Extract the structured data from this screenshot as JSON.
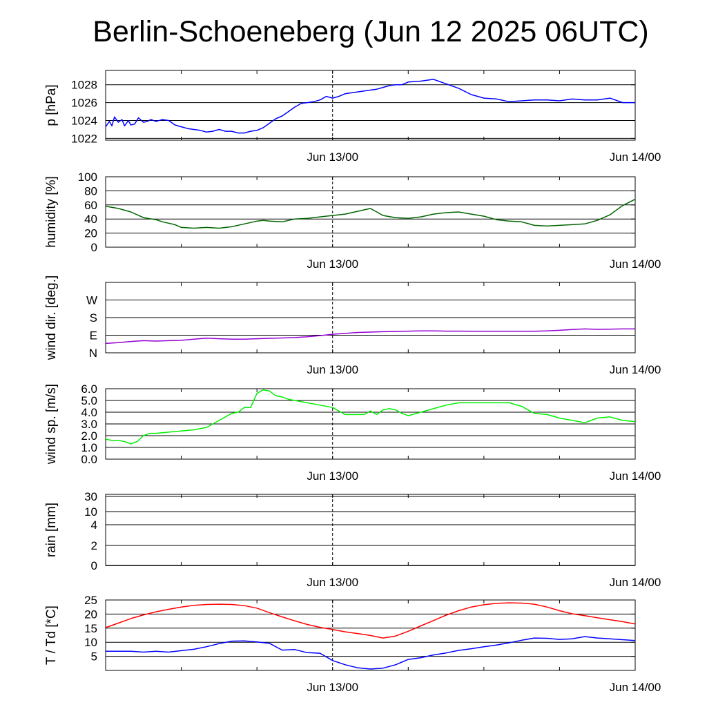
{
  "title": "Berlin-Schoeneberg (Jun 12 2025 06UTC)",
  "colors": {
    "pressure": "#0000ff",
    "humidity": "#006400",
    "wind_dir": "#9400d3",
    "wind_speed": "#00ee00",
    "rain": "#000000",
    "temperature": "#ff0000",
    "dewpoint": "#0000ff"
  },
  "chart_data": [
    {
      "type": "line",
      "ylabel": "p [hPa]",
      "x_tick_labels": [
        "Jun 13/00",
        "Jun 14/00"
      ],
      "x_range_hours": [
        0,
        42
      ],
      "y_ticks": [
        1022,
        1024,
        1026,
        1028
      ],
      "y_tick_labels": [
        "1022",
        "1024",
        "1026",
        "1028"
      ],
      "ylim": [
        1021.8,
        1029.6
      ],
      "grid": true,
      "series": [
        {
          "x": [
            0,
            0.3,
            0.5,
            0.7,
            1,
            1.3,
            1.5,
            1.8,
            2,
            2.3,
            2.6,
            3,
            3.3,
            3.6,
            4,
            4.5,
            5,
            5.5,
            6,
            6.5,
            7,
            7.5,
            8,
            8.5,
            9,
            9.5,
            10,
            10.5,
            11,
            11.5,
            12,
            12.5,
            13,
            13.5,
            14,
            14.5,
            15,
            15.5,
            16,
            16.5,
            17,
            17.5,
            18,
            18.5,
            19,
            19.5,
            20,
            20.5,
            21,
            21.5,
            22,
            22.5,
            23,
            23.5,
            24,
            25,
            26,
            27,
            28,
            29,
            30,
            31,
            32,
            33,
            34,
            35,
            36,
            37,
            38,
            39,
            40,
            41,
            42
          ],
          "y": [
            1023.3,
            1023.9,
            1023.4,
            1024.4,
            1023.8,
            1024.1,
            1023.4,
            1024.0,
            1023.5,
            1023.6,
            1024.3,
            1023.8,
            1023.9,
            1024.1,
            1023.9,
            1024.1,
            1024.0,
            1023.5,
            1023.3,
            1023.1,
            1023.0,
            1022.9,
            1022.7,
            1022.8,
            1023.0,
            1022.8,
            1022.8,
            1022.6,
            1022.6,
            1022.8,
            1022.9,
            1023.2,
            1023.7,
            1024.2,
            1024.5,
            1025.0,
            1025.5,
            1025.9,
            1026.0,
            1026.1,
            1026.3,
            1026.7,
            1026.5,
            1026.7,
            1027.0,
            1027.1,
            1027.2,
            1027.3,
            1027.4,
            1027.5,
            1027.7,
            1027.9,
            1028.0,
            1028.0,
            1028.3,
            1028.4,
            1028.6,
            1028.1,
            1027.6,
            1026.9,
            1026.5,
            1026.4,
            1026.1,
            1026.2,
            1026.3,
            1026.3,
            1026.2,
            1026.4,
            1026.3,
            1026.3,
            1026.5,
            1026.0,
            1026.0
          ]
        }
      ]
    },
    {
      "type": "line",
      "ylabel": "humidity [%]",
      "x_tick_labels": [
        "Jun 13/00",
        "Jun 14/00"
      ],
      "x_range_hours": [
        0,
        42
      ],
      "y_ticks": [
        0,
        20,
        40,
        60,
        80,
        100
      ],
      "y_tick_labels": [
        "0",
        "20",
        "40",
        "60",
        "80",
        "100"
      ],
      "ylim": [
        0,
        100
      ],
      "grid": true,
      "series": [
        {
          "x": [
            0,
            1,
            2,
            2.5,
            3,
            4,
            4.5,
            5,
            5.5,
            6,
            7,
            8,
            9,
            10,
            11,
            12,
            12.5,
            13,
            14,
            15,
            16,
            17,
            18,
            19,
            20,
            21,
            22,
            23,
            24,
            25,
            26,
            27,
            28,
            29,
            30,
            31,
            32,
            33,
            34,
            35,
            36,
            37,
            38,
            39,
            40,
            41,
            42
          ],
          "y": [
            58,
            55,
            50,
            46,
            42,
            39,
            36,
            34,
            32,
            28,
            27,
            28,
            27,
            29,
            33,
            37,
            38,
            37,
            36,
            40,
            41,
            43,
            45,
            47,
            51,
            55,
            45,
            42,
            41,
            43,
            47,
            49,
            50,
            47,
            44,
            39,
            37,
            36,
            31,
            30,
            31,
            32,
            33,
            38,
            46,
            59,
            68
          ]
        }
      ]
    },
    {
      "type": "line",
      "ylabel": "wind dir. [deg.]",
      "x_tick_labels": [
        "Jun 13/00",
        "Jun 14/00"
      ],
      "x_range_hours": [
        0,
        42
      ],
      "y_ticks": [
        0,
        90,
        180,
        270
      ],
      "y_tick_labels": [
        "N",
        "E",
        "S",
        "W"
      ],
      "ylim": [
        0,
        360
      ],
      "grid": true,
      "series": [
        {
          "x": [
            0,
            1,
            2,
            3,
            4,
            5,
            6,
            7,
            8,
            9,
            10,
            11,
            12,
            13,
            14,
            15,
            16,
            17,
            18,
            19,
            20,
            21,
            22,
            23,
            24,
            25,
            26,
            27,
            28,
            29,
            30,
            31,
            32,
            33,
            34,
            35,
            36,
            37,
            38,
            39,
            40,
            41,
            42
          ],
          "y": [
            48,
            52,
            58,
            62,
            60,
            62,
            64,
            70,
            75,
            72,
            70,
            70,
            72,
            74,
            76,
            78,
            82,
            88,
            95,
            99,
            104,
            106,
            108,
            109,
            111,
            112,
            112,
            111,
            111,
            110,
            110,
            110,
            110,
            110,
            110,
            112,
            115,
            119,
            122,
            120,
            121,
            122,
            122
          ]
        }
      ]
    },
    {
      "type": "line",
      "ylabel": "wind sp. [m/s]",
      "x_tick_labels": [
        "Jun 13/00",
        "Jun 14/00"
      ],
      "x_range_hours": [
        0,
        42
      ],
      "y_ticks": [
        0,
        1,
        2,
        3,
        4,
        5,
        6
      ],
      "y_tick_labels": [
        "0.0",
        "1.0",
        "2.0",
        "3.0",
        "4.0",
        "5.0",
        "6.0"
      ],
      "ylim": [
        0,
        6
      ],
      "grid": true,
      "series": [
        {
          "x": [
            0,
            0.5,
            1,
            1.5,
            2,
            2.5,
            3,
            3.5,
            4,
            5,
            6,
            7,
            8,
            9,
            10,
            10.5,
            11,
            11.5,
            12,
            12.5,
            13,
            13.5,
            14,
            14.5,
            15,
            16,
            17,
            18,
            19,
            20,
            20.5,
            21,
            21.5,
            22,
            22.5,
            23,
            23.5,
            24,
            25,
            26,
            27,
            28,
            29,
            30,
            31,
            32,
            33,
            34,
            35,
            36,
            37,
            38,
            39,
            40,
            41,
            42
          ],
          "y": [
            1.7,
            1.6,
            1.6,
            1.5,
            1.3,
            1.5,
            2.0,
            2.2,
            2.2,
            2.3,
            2.4,
            2.5,
            2.7,
            3.3,
            3.9,
            4.0,
            4.4,
            4.4,
            5.6,
            5.9,
            5.8,
            5.4,
            5.3,
            5.1,
            5.0,
            4.8,
            4.6,
            4.4,
            3.8,
            3.8,
            3.8,
            4.1,
            3.8,
            4.2,
            4.3,
            4.2,
            3.9,
            3.7,
            4.0,
            4.3,
            4.6,
            4.8,
            4.8,
            4.8,
            4.8,
            4.8,
            4.5,
            3.9,
            3.8,
            3.5,
            3.3,
            3.1,
            3.5,
            3.6,
            3.3,
            3.2
          ]
        }
      ]
    },
    {
      "type": "line",
      "ylabel": "rain [mm]",
      "x_tick_labels": [
        "Jun 13/00",
        "Jun 14/00"
      ],
      "x_range_hours": [
        0,
        42
      ],
      "y_ticks": [
        0,
        2,
        4,
        10,
        30
      ],
      "y_tick_labels": [
        "0",
        "2",
        "4",
        "10",
        "30"
      ],
      "scale": "nonlinear",
      "grid": true,
      "series": [
        {
          "x": [
            0,
            42
          ],
          "y": [
            0,
            0
          ]
        }
      ]
    },
    {
      "type": "line",
      "ylabel": "T / Td [*C]",
      "x_tick_labels": [
        "Jun 13/00",
        "Jun 14/00"
      ],
      "x_range_hours": [
        0,
        42
      ],
      "y_ticks": [
        5,
        10,
        15,
        20,
        25
      ],
      "y_tick_labels": [
        "5",
        "10",
        "15",
        "20",
        "25"
      ],
      "ylim": [
        0,
        25
      ],
      "grid": true,
      "series": [
        {
          "x": [
            0,
            1,
            2,
            3,
            4,
            5,
            6,
            7,
            8,
            9,
            10,
            11,
            12,
            13,
            14,
            15,
            16,
            17,
            18,
            19,
            20,
            21,
            22,
            23,
            24,
            25,
            26,
            27,
            28,
            29,
            30,
            31,
            32,
            33,
            34,
            35,
            36,
            37,
            38,
            39,
            40,
            41,
            42
          ],
          "y": [
            15.2,
            16.8,
            18.4,
            19.7,
            20.8,
            21.7,
            22.5,
            23.1,
            23.4,
            23.5,
            23.4,
            23.0,
            22.1,
            20.5,
            19.0,
            17.6,
            16.3,
            15.3,
            14.5,
            13.7,
            13.1,
            12.4,
            11.5,
            12.2,
            13.9,
            15.8,
            17.7,
            19.6,
            21.2,
            22.5,
            23.3,
            23.8,
            24.0,
            23.9,
            23.5,
            22.5,
            21.2,
            20.1,
            19.4,
            18.7,
            18.0,
            17.3,
            16.5
          ]
        },
        {
          "x": [
            0,
            1,
            2,
            3,
            4,
            5,
            6,
            7,
            8,
            9,
            10,
            11,
            12,
            13,
            14,
            15,
            16,
            17,
            18,
            19,
            20,
            21,
            22,
            23,
            24,
            25,
            26,
            27,
            28,
            29,
            30,
            31,
            32,
            33,
            34,
            35,
            36,
            37,
            38,
            39,
            40,
            41,
            42
          ],
          "y": [
            6.8,
            6.8,
            6.8,
            6.5,
            6.8,
            6.5,
            7.0,
            7.5,
            8.4,
            9.5,
            10.4,
            10.5,
            10.1,
            9.6,
            7.2,
            7.4,
            6.3,
            6.1,
            3.5,
            2.0,
            0.9,
            0.5,
            0.8,
            2.0,
            3.9,
            4.5,
            5.5,
            6.2,
            7.1,
            7.7,
            8.4,
            9.0,
            9.8,
            10.7,
            11.5,
            11.4,
            11.0,
            11.2,
            12.0,
            11.5,
            11.2,
            10.9,
            10.6
          ]
        }
      ]
    }
  ]
}
